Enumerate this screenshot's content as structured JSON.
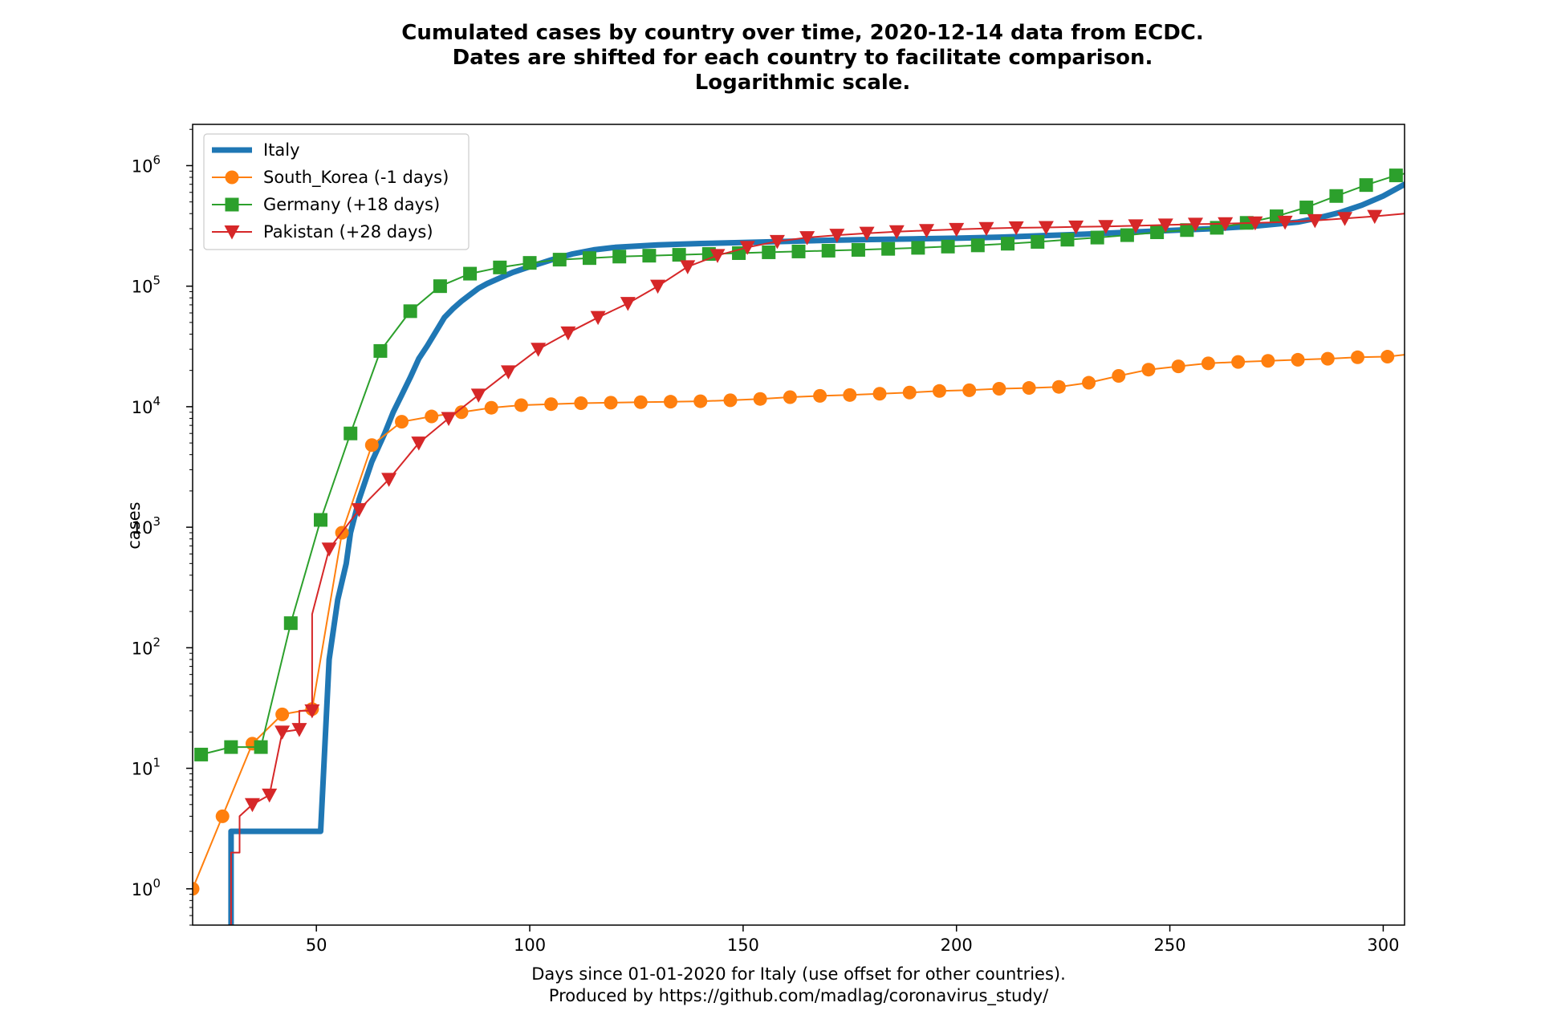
{
  "chart_data": {
    "type": "line",
    "title_lines": [
      "Cumulated cases by country over time, 2020-12-14 data from ECDC.",
      "Dates are shifted for each country to facilitate comparison.",
      "Logarithmic scale."
    ],
    "xlabel_lines": [
      "Days since 01-01-2020 for Italy (use offset for other countries).",
      "Produced by https://github.com/madlag/coronavirus_study/"
    ],
    "ylabel": "cases",
    "xlim": [
      21,
      305
    ],
    "ylim": [
      0.5,
      2200000
    ],
    "yscale": "log",
    "grid": false,
    "legend_position": "top-left",
    "x_ticks": [
      50,
      100,
      150,
      200,
      250,
      300
    ],
    "x_tick_labels": [
      "50",
      "100",
      "150",
      "200",
      "250",
      "300"
    ],
    "y_ticks": [
      1,
      10,
      100,
      1000,
      10000,
      100000,
      1000000
    ],
    "y_tick_exponents": [
      "0",
      "1",
      "2",
      "3",
      "4",
      "5",
      "6"
    ],
    "y_tick_base": "10",
    "series": [
      {
        "name": "Italy",
        "color": "#1f77b4",
        "marker": "none",
        "stroke_width": 7,
        "x": [
          29,
          30,
          30,
          51,
          51,
          53,
          55,
          57,
          58,
          60,
          63,
          66,
          68,
          70,
          72,
          74,
          76,
          78,
          80,
          82,
          84,
          86,
          88,
          90,
          93,
          96,
          100,
          105,
          110,
          115,
          120,
          130,
          140,
          150,
          160,
          170,
          180,
          190,
          200,
          210,
          220,
          230,
          240,
          250,
          260,
          270,
          280,
          285,
          290,
          295,
          300,
          305
        ],
        "y": [
          0.3,
          0.3,
          3,
          3,
          3,
          80,
          250,
          500,
          900,
          1700,
          3500,
          6000,
          9000,
          12500,
          17500,
          25000,
          32000,
          42000,
          55000,
          65000,
          75000,
          85000,
          96000,
          105000,
          117000,
          130000,
          145000,
          165000,
          185000,
          200000,
          210000,
          220000,
          226000,
          230000,
          235000,
          240000,
          244000,
          247000,
          250000,
          255000,
          262000,
          270000,
          280000,
          290000,
          300000,
          315000,
          340000,
          370000,
          410000,
          470000,
          560000,
          700000
        ]
      },
      {
        "name": "South_Korea (-1 days)",
        "color": "#ff7f0e",
        "marker": "circle",
        "stroke_width": 2,
        "x": [
          21,
          28,
          35,
          42,
          49,
          56,
          63,
          70,
          77,
          84,
          91,
          98,
          105,
          112,
          119,
          126,
          133,
          140,
          147,
          154,
          161,
          168,
          175,
          182,
          189,
          196,
          203,
          210,
          217,
          224,
          231,
          238,
          245,
          252,
          259,
          266,
          273,
          280,
          287,
          294,
          301,
          305
        ],
        "y": [
          1,
          4,
          16,
          28,
          31,
          900,
          4800,
          7500,
          8300,
          9000,
          9800,
          10300,
          10500,
          10700,
          10800,
          10900,
          11000,
          11100,
          11300,
          11600,
          12000,
          12300,
          12500,
          12800,
          13100,
          13500,
          13700,
          14100,
          14300,
          14600,
          15800,
          18000,
          20300,
          21600,
          22900,
          23500,
          24000,
          24500,
          25000,
          25700,
          26000,
          27000
        ]
      },
      {
        "name": "Germany (+18 days)",
        "color": "#2ca02c",
        "marker": "square",
        "stroke_width": 2,
        "x": [
          23,
          30,
          37,
          44,
          51,
          58,
          65,
          72,
          79,
          86,
          93,
          100,
          107,
          114,
          121,
          128,
          135,
          142,
          149,
          156,
          163,
          170,
          177,
          184,
          191,
          198,
          205,
          212,
          219,
          226,
          233,
          240,
          247,
          254,
          261,
          268,
          275,
          282,
          289,
          296,
          303,
          305
        ],
        "y": [
          13,
          15,
          15,
          160,
          1150,
          6000,
          29000,
          62000,
          100000,
          127000,
          143000,
          156000,
          166000,
          171000,
          176000,
          179000,
          182000,
          185000,
          188000,
          191000,
          194000,
          197000,
          200000,
          204000,
          208000,
          213000,
          218000,
          225000,
          233000,
          243000,
          253000,
          265000,
          280000,
          292000,
          305000,
          335000,
          380000,
          450000,
          560000,
          690000,
          830000,
          860000
        ]
      },
      {
        "name": "Pakistan (+28 days)",
        "color": "#d62728",
        "marker": "triangle-down",
        "stroke_width": 2,
        "x": [
          29,
          30,
          30,
          32,
          32,
          35,
          39,
          42,
          46,
          46,
          49,
          49,
          53,
          60,
          67,
          74,
          81,
          88,
          95,
          102,
          109,
          116,
          123,
          130,
          137,
          144,
          151,
          158,
          165,
          172,
          179,
          186,
          193,
          200,
          207,
          214,
          221,
          228,
          235,
          242,
          249,
          256,
          263,
          270,
          277,
          284,
          291,
          298,
          305
        ],
        "y": [
          0.3,
          0.3,
          2,
          2,
          4,
          5,
          6,
          20,
          21,
          30,
          30,
          190,
          660,
          1400,
          2500,
          5000,
          8000,
          12500,
          19500,
          30000,
          41000,
          55000,
          72000,
          100000,
          145000,
          180000,
          210000,
          235000,
          253000,
          265000,
          275000,
          283000,
          290000,
          296000,
          301000,
          305000,
          307000,
          310000,
          313000,
          317000,
          322000,
          327000,
          330000,
          335000,
          340000,
          350000,
          365000,
          380000,
          400000
        ]
      }
    ]
  }
}
